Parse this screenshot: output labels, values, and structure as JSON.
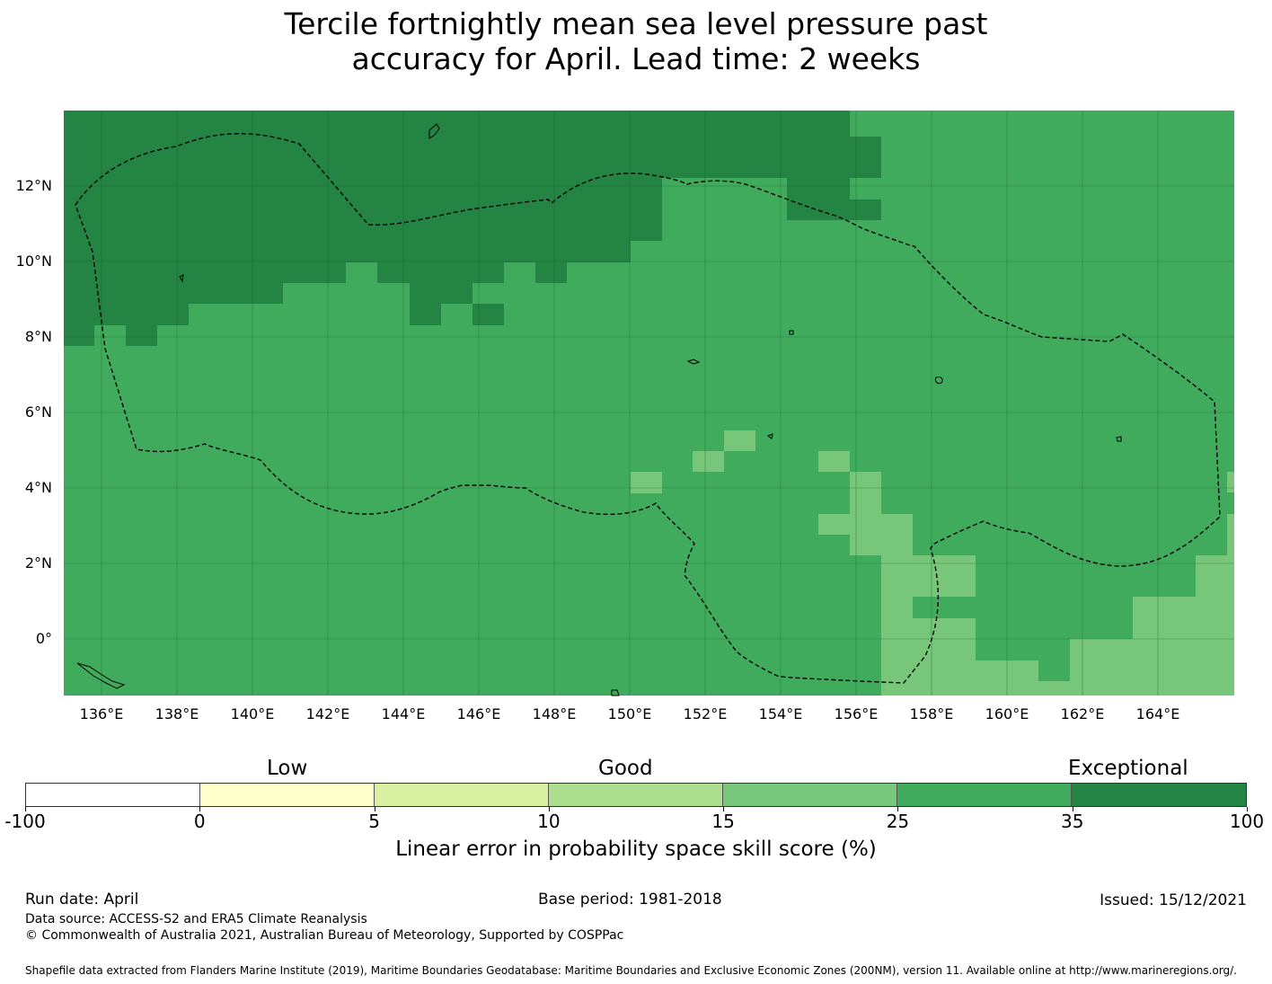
{
  "title": {
    "line1": "Tercile fortnightly mean sea level pressure past",
    "line2": "accuracy for April. Lead time: 2 weeks"
  },
  "map": {
    "lon_ticks": [
      "136°E",
      "138°E",
      "140°E",
      "142°E",
      "144°E",
      "146°E",
      "148°E",
      "150°E",
      "152°E",
      "154°E",
      "156°E",
      "158°E",
      "160°E",
      "162°E",
      "164°E"
    ],
    "lat_ticks": [
      "12°N",
      "10°N",
      "8°N",
      "6°N",
      "4°N",
      "2°N",
      "0°"
    ],
    "lon_range": [
      135,
      166
    ],
    "lat_range": [
      -1.5,
      14
    ],
    "colors": {
      "exceptional": "#238443",
      "very_good": "#41ab5d",
      "good": "#78c679",
      "line": "#000000"
    }
  },
  "colorbar": {
    "categories": [
      "Low",
      "Good",
      "Exceptional"
    ],
    "ticks": [
      "-100",
      "0",
      "5",
      "10",
      "15",
      "25",
      "35",
      "100"
    ],
    "colors": [
      "#ffffff",
      "#ffffcc",
      "#d9f0a3",
      "#addd8e",
      "#78c679",
      "#41ab5d",
      "#238443"
    ],
    "label": "Linear error in probability space skill score (%)"
  },
  "footer": {
    "run_date": "Run date: April",
    "base_period": "Base period: 1981-2018",
    "issued": "Issued: 15/12/2021",
    "data_source": "Data source: ACCESS-S2 and ERA5 Climate Reanalysis",
    "copyright": "© Commonwealth of Australia 2021, Australian Bureau of Meteorology, Supported by COSPPac",
    "shapefile": "Shapefile data extracted from Flanders Marine Institute (2019), Maritime Boundaries Geodatabase: Maritime Boundaries and Exclusive Economic Zones (200NM), version 11. Available online at http://www.marineregions.org/."
  }
}
